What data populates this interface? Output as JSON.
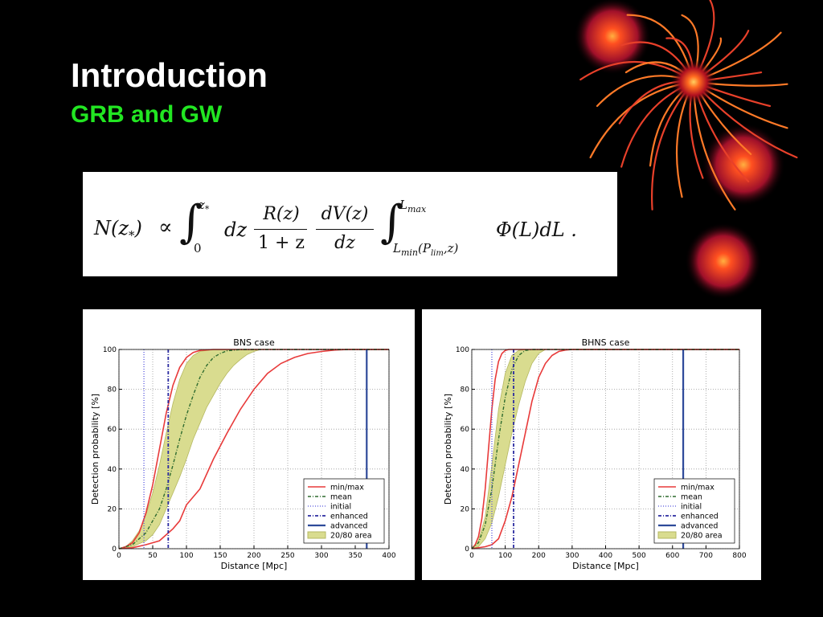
{
  "slide": {
    "title": "Introduction",
    "subtitle": "GRB and GW",
    "colors": {
      "background": "#000000",
      "title": "#ffffff",
      "subtitle": "#22e622"
    },
    "decoration_icon": "fireworks-sparkler-icon"
  },
  "formula": {
    "lhs": "N(z",
    "lhs_sub": "*",
    "lhs_close": ")",
    "propto": "∝",
    "int_symbol": "∫",
    "int1_lower": "0",
    "int1_upper": "z",
    "int1_upper_sub": "*",
    "dz": "dz",
    "frac1_num": "R(z)",
    "frac1_den": "1 + z",
    "frac2_num": "dV(z)",
    "frac2_den": "dz",
    "int2_upper": "L",
    "int2_upper_sub": "max",
    "int2_lower": "L",
    "int2_lower_sub": "min",
    "int2_lower_args": "(P",
    "int2_lower_args_sub": "lim",
    "int2_lower_args_end": ",z)",
    "integrand": "Φ(L)dL ."
  },
  "chart_data": [
    {
      "type": "line",
      "title": "BNS case",
      "xlabel": "Distance [Mpc]",
      "ylabel": "Detection probability [%]",
      "xlim": [
        0,
        400
      ],
      "ylim": [
        0,
        100
      ],
      "xticks": [
        0,
        50,
        100,
        150,
        200,
        250,
        300,
        350,
        400
      ],
      "yticks": [
        0,
        20,
        40,
        60,
        80,
        100
      ],
      "grid": true,
      "legend_position": "bottom-right",
      "legend": [
        "min/max",
        "mean",
        "initial",
        "enhanced",
        "advanced",
        "20/80 area"
      ],
      "colors": {
        "minmax": "#e83a3a",
        "mean": "#2f6b2f",
        "initial": "#5555dd",
        "enhanced": "#2a2aa0",
        "advanced": "#2e4a9a",
        "area": "#d9dc8f"
      },
      "series": [
        {
          "name": "min/max",
          "role": "min",
          "points": [
            [
              0,
              0
            ],
            [
              10,
              1
            ],
            [
              20,
              3
            ],
            [
              30,
              8
            ],
            [
              40,
              18
            ],
            [
              50,
              32
            ],
            [
              60,
              50
            ],
            [
              70,
              68
            ],
            [
              80,
              82
            ],
            [
              90,
              91
            ],
            [
              100,
              96
            ],
            [
              110,
              98.5
            ],
            [
              120,
              99.5
            ],
            [
              140,
              100
            ],
            [
              400,
              100
            ]
          ]
        },
        {
          "name": "min/max",
          "role": "max",
          "points": [
            [
              0,
              0
            ],
            [
              20,
              0.5
            ],
            [
              40,
              2
            ],
            [
              60,
              4
            ],
            [
              70,
              7
            ],
            [
              80,
              10
            ],
            [
              90,
              14
            ],
            [
              100,
              22
            ],
            [
              120,
              30
            ],
            [
              140,
              45
            ],
            [
              160,
              58
            ],
            [
              180,
              70
            ],
            [
              200,
              80
            ],
            [
              220,
              88
            ],
            [
              240,
              93
            ],
            [
              260,
              96
            ],
            [
              280,
              98
            ],
            [
              300,
              99
            ],
            [
              320,
              99.7
            ],
            [
              340,
              100
            ],
            [
              400,
              100
            ]
          ]
        },
        {
          "name": "mean",
          "points": [
            [
              0,
              0
            ],
            [
              20,
              2
            ],
            [
              40,
              8
            ],
            [
              60,
              20
            ],
            [
              70,
              30
            ],
            [
              80,
              42
            ],
            [
              90,
              55
            ],
            [
              100,
              67
            ],
            [
              110,
              77
            ],
            [
              120,
              86
            ],
            [
              130,
              92
            ],
            [
              140,
              96
            ],
            [
              150,
              98
            ],
            [
              160,
              99.3
            ],
            [
              180,
              100
            ],
            [
              400,
              100
            ]
          ]
        },
        {
          "name": "20/80 area",
          "role": "upper",
          "points": [
            [
              0,
              0
            ],
            [
              10,
              1
            ],
            [
              20,
              4
            ],
            [
              30,
              9
            ],
            [
              40,
              17
            ],
            [
              50,
              28
            ],
            [
              60,
              42
            ],
            [
              70,
              58
            ],
            [
              80,
              73
            ],
            [
              90,
              85
            ],
            [
              100,
              93
            ],
            [
              110,
              97
            ],
            [
              120,
              99
            ],
            [
              140,
              100
            ],
            [
              400,
              100
            ]
          ]
        },
        {
          "name": "20/80 area",
          "role": "lower",
          "points": [
            [
              0,
              0
            ],
            [
              20,
              1
            ],
            [
              40,
              4
            ],
            [
              50,
              7
            ],
            [
              60,
              12
            ],
            [
              70,
              20
            ],
            [
              80,
              28
            ],
            [
              90,
              36
            ],
            [
              100,
              45
            ],
            [
              110,
              55
            ],
            [
              120,
              63
            ],
            [
              130,
              71
            ],
            [
              140,
              77
            ],
            [
              150,
              83
            ],
            [
              160,
              88
            ],
            [
              170,
              92
            ],
            [
              180,
              95
            ],
            [
              190,
              97.5
            ],
            [
              200,
              99
            ],
            [
              210,
              100
            ],
            [
              400,
              100
            ]
          ]
        }
      ],
      "vlines": [
        {
          "name": "initial",
          "x": 37
        },
        {
          "name": "enhanced",
          "x": 73
        },
        {
          "name": "advanced",
          "x": 367
        }
      ]
    },
    {
      "type": "line",
      "title": "BHNS case",
      "xlabel": "Distance [Mpc]",
      "ylabel": "Detection probability [%]",
      "xlim": [
        0,
        800
      ],
      "ylim": [
        0,
        100
      ],
      "xticks": [
        0,
        100,
        200,
        300,
        400,
        500,
        600,
        700,
        800
      ],
      "yticks": [
        0,
        20,
        40,
        60,
        80,
        100
      ],
      "grid": true,
      "legend_position": "bottom-right",
      "legend": [
        "min/max",
        "mean",
        "initial",
        "enhanced",
        "advanced",
        "20/80 area"
      ],
      "colors": {
        "minmax": "#e83a3a",
        "mean": "#2f6b2f",
        "initial": "#5555dd",
        "enhanced": "#2a2aa0",
        "advanced": "#2e4a9a",
        "area": "#d9dc8f"
      },
      "series": [
        {
          "name": "min/max",
          "role": "min",
          "points": [
            [
              0,
              0
            ],
            [
              10,
              2
            ],
            [
              20,
              6
            ],
            [
              30,
              15
            ],
            [
              40,
              30
            ],
            [
              50,
              50
            ],
            [
              60,
              70
            ],
            [
              70,
              85
            ],
            [
              80,
              94
            ],
            [
              90,
              98
            ],
            [
              100,
              99.5
            ],
            [
              110,
              100
            ],
            [
              800,
              100
            ]
          ]
        },
        {
          "name": "min/max",
          "role": "max",
          "points": [
            [
              0,
              0
            ],
            [
              40,
              1
            ],
            [
              60,
              2
            ],
            [
              80,
              5
            ],
            [
              100,
              14
            ],
            [
              120,
              26
            ],
            [
              140,
              42
            ],
            [
              160,
              58
            ],
            [
              180,
              74
            ],
            [
              200,
              86
            ],
            [
              220,
              93
            ],
            [
              240,
              97
            ],
            [
              260,
              99
            ],
            [
              280,
              99.7
            ],
            [
              300,
              100
            ],
            [
              800,
              100
            ]
          ]
        },
        {
          "name": "mean",
          "points": [
            [
              0,
              0
            ],
            [
              20,
              3
            ],
            [
              40,
              12
            ],
            [
              60,
              30
            ],
            [
              80,
              55
            ],
            [
              100,
              76
            ],
            [
              120,
              90
            ],
            [
              140,
              97
            ],
            [
              160,
              99.5
            ],
            [
              180,
              100
            ],
            [
              800,
              100
            ]
          ]
        },
        {
          "name": "20/80 area",
          "role": "upper",
          "points": [
            [
              0,
              0
            ],
            [
              20,
              4
            ],
            [
              40,
              16
            ],
            [
              60,
              42
            ],
            [
              80,
              70
            ],
            [
              100,
              88
            ],
            [
              120,
              97
            ],
            [
              140,
              99.5
            ],
            [
              160,
              100
            ],
            [
              800,
              100
            ]
          ]
        },
        {
          "name": "20/80 area",
          "role": "lower",
          "points": [
            [
              0,
              0
            ],
            [
              20,
              1
            ],
            [
              40,
              5
            ],
            [
              60,
              13
            ],
            [
              80,
              26
            ],
            [
              100,
              42
            ],
            [
              120,
              58
            ],
            [
              140,
              72
            ],
            [
              160,
              84
            ],
            [
              180,
              93
            ],
            [
              200,
              98
            ],
            [
              220,
              100
            ],
            [
              800,
              100
            ]
          ]
        }
      ],
      "vlines": [
        {
          "name": "initial",
          "x": 60
        },
        {
          "name": "enhanced",
          "x": 125
        },
        {
          "name": "advanced",
          "x": 632
        }
      ]
    }
  ]
}
